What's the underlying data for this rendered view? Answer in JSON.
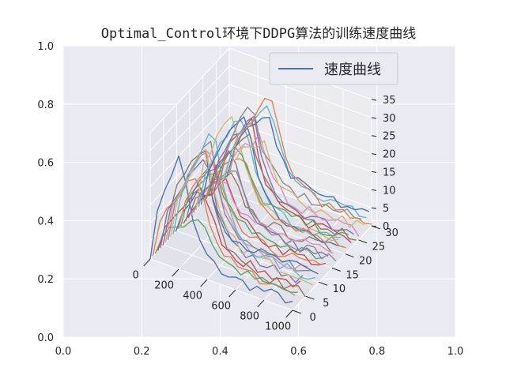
{
  "chart_data": {
    "type": "line",
    "projection": "3d",
    "title": "Optimal_Control环境下DDPG算法的训练速度曲线",
    "legend": {
      "entries": [
        "速度曲线"
      ],
      "placement": "top-right"
    },
    "grid": true,
    "outer_axes": {
      "xlim": [
        0,
        1
      ],
      "ylim": [
        0,
        1
      ],
      "x_ticks": [
        "0.0",
        "0.2",
        "0.4",
        "0.6",
        "0.8",
        "1.0"
      ],
      "y_ticks": [
        "0.0",
        "0.2",
        "0.4",
        "0.6",
        "0.8",
        "1.0"
      ]
    },
    "x_axis": {
      "range": [
        0,
        1000
      ],
      "ticks": [
        "0",
        "200",
        "400",
        "600",
        "800",
        "1000"
      ]
    },
    "y_axis": {
      "range": [
        0,
        30
      ],
      "ticks": [
        "0",
        "5",
        "10",
        "15",
        "20",
        "25",
        "30"
      ]
    },
    "z_axis": {
      "range": [
        0,
        35
      ],
      "ticks": [
        "0",
        "5",
        "10",
        "15",
        "20",
        "25",
        "30",
        "35"
      ]
    },
    "series_count": 32,
    "colors": [
      "#4c72b0",
      "#dd8452",
      "#55a868",
      "#c44e52",
      "#8172b3",
      "#937860",
      "#da8bc3",
      "#8c8c8c",
      "#ccb974",
      "#64b5cd"
    ]
  }
}
